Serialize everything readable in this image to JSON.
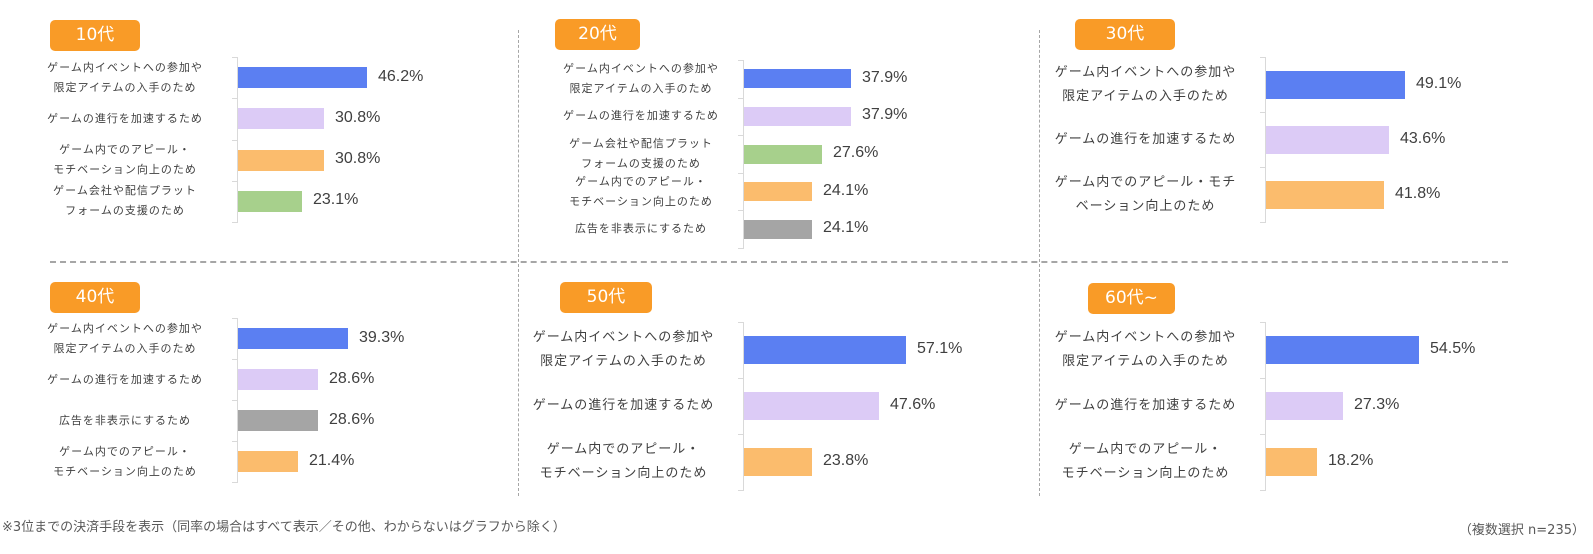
{
  "panels": [
    {
      "title": "10代",
      "items": [
        {
          "label": "ゲーム内イベントへの参加や\n限定アイテムの入手のため",
          "value": 46.2,
          "display": "46.2%",
          "color": "#5b7ff2"
        },
        {
          "label": "ゲームの進行を加速するため",
          "value": 30.8,
          "display": "30.8%",
          "color": "#dccbf6"
        },
        {
          "label": "ゲーム内でのアピール・\nモチベーション向上のため",
          "value": 30.8,
          "display": "30.8%",
          "color": "#fbbc6d"
        },
        {
          "label": "ゲーム会社や配信プラット\nフォームの支援のため",
          "value": 23.1,
          "display": "23.1%",
          "color": "#a7d08c"
        }
      ]
    },
    {
      "title": "20代",
      "items": [
        {
          "label": "ゲーム内イベントへの参加や\n限定アイテムの入手のため",
          "value": 37.9,
          "display": "37.9%",
          "color": "#5b7ff2"
        },
        {
          "label": "ゲームの進行を加速するため",
          "value": 37.9,
          "display": "37.9%",
          "color": "#dccbf6"
        },
        {
          "label": "ゲーム会社や配信プラット\nフォームの支援のため",
          "value": 27.6,
          "display": "27.6%",
          "color": "#a7d08c"
        },
        {
          "label": "ゲーム内でのアピール・\nモチベーション向上のため",
          "value": 24.1,
          "display": "24.1%",
          "color": "#fbbc6d"
        },
        {
          "label": "広告を非表示にするため",
          "value": 24.1,
          "display": "24.1%",
          "color": "#a5a5a5"
        }
      ]
    },
    {
      "title": "30代",
      "items": [
        {
          "label": "ゲーム内イベントへの参加や\n限定アイテムの入手のため",
          "value": 49.1,
          "display": "49.1%",
          "color": "#5b7ff2"
        },
        {
          "label": "ゲームの進行を加速するため",
          "value": 43.6,
          "display": "43.6%",
          "color": "#dccbf6"
        },
        {
          "label": "ゲーム内でのアピール・モチ\nベーション向上のため",
          "value": 41.8,
          "display": "41.8%",
          "color": "#fbbc6d"
        }
      ]
    },
    {
      "title": "40代",
      "items": [
        {
          "label": "ゲーム内イベントへの参加や\n限定アイテムの入手のため",
          "value": 39.3,
          "display": "39.3%",
          "color": "#5b7ff2"
        },
        {
          "label": "ゲームの進行を加速するため",
          "value": 28.6,
          "display": "28.6%",
          "color": "#dccbf6"
        },
        {
          "label": "広告を非表示にするため",
          "value": 28.6,
          "display": "28.6%",
          "color": "#a5a5a5"
        },
        {
          "label": "ゲーム内でのアピール・\nモチベーション向上のため",
          "value": 21.4,
          "display": "21.4%",
          "color": "#fbbc6d"
        }
      ]
    },
    {
      "title": "50代",
      "items": [
        {
          "label": "ゲーム内イベントへの参加や\n限定アイテムの入手のため",
          "value": 57.1,
          "display": "57.1%",
          "color": "#5b7ff2"
        },
        {
          "label": "ゲームの進行を加速するため",
          "value": 47.6,
          "display": "47.6%",
          "color": "#dccbf6"
        },
        {
          "label": "ゲーム内でのアピール・\nモチベーション向上のため",
          "value": 23.8,
          "display": "23.8%",
          "color": "#fbbc6d"
        }
      ]
    },
    {
      "title": "60代~",
      "items": [
        {
          "label": "ゲーム内イベントへの参加や\n限定アイテムの入手のため",
          "value": 54.5,
          "display": "54.5%",
          "color": "#5b7ff2"
        },
        {
          "label": "ゲームの進行を加速するため",
          "value": 27.3,
          "display": "27.3%",
          "color": "#dccbf6"
        },
        {
          "label": "ゲーム内でのアピール・\nモチベーション向上のため",
          "value": 18.2,
          "display": "18.2%",
          "color": "#fbbc6d"
        }
      ]
    }
  ],
  "footer": {
    "note": "※3位までの決済手段を表示（同率の場合はすべて表示／その他、わからないはグラフから除く）",
    "sample": "（複数選択 n=235）"
  },
  "colors": {
    "badge": "#f99b27",
    "divider": "#a6a6a6"
  },
  "chart_data": [
    {
      "type": "bar",
      "orientation": "horizontal",
      "title": "10代",
      "categories": [
        "ゲーム内イベントへの参加や限定アイテムの入手のため",
        "ゲームの進行を加速するため",
        "ゲーム内でのアピール・モチベーション向上のため",
        "ゲーム会社や配信プラットフォームの支援のため"
      ],
      "values": [
        46.2,
        30.8,
        30.8,
        23.1
      ],
      "unit": "%",
      "xlabel": "",
      "ylabel": ""
    },
    {
      "type": "bar",
      "orientation": "horizontal",
      "title": "20代",
      "categories": [
        "ゲーム内イベントへの参加や限定アイテムの入手のため",
        "ゲームの進行を加速するため",
        "ゲーム会社や配信プラットフォームの支援のため",
        "ゲーム内でのアピール・モチベーション向上のため",
        "広告を非表示にするため"
      ],
      "values": [
        37.9,
        37.9,
        27.6,
        24.1,
        24.1
      ],
      "unit": "%",
      "xlabel": "",
      "ylabel": ""
    },
    {
      "type": "bar",
      "orientation": "horizontal",
      "title": "30代",
      "categories": [
        "ゲーム内イベントへの参加や限定アイテムの入手のため",
        "ゲームの進行を加速するため",
        "ゲーム内でのアピール・モチベーション向上のため"
      ],
      "values": [
        49.1,
        43.6,
        41.8
      ],
      "unit": "%",
      "xlabel": "",
      "ylabel": ""
    },
    {
      "type": "bar",
      "orientation": "horizontal",
      "title": "40代",
      "categories": [
        "ゲーム内イベントへの参加や限定アイテムの入手のため",
        "ゲームの進行を加速するため",
        "広告を非表示にするため",
        "ゲーム内でのアピール・モチベーション向上のため"
      ],
      "values": [
        39.3,
        28.6,
        28.6,
        21.4
      ],
      "unit": "%",
      "xlabel": "",
      "ylabel": ""
    },
    {
      "type": "bar",
      "orientation": "horizontal",
      "title": "50代",
      "categories": [
        "ゲーム内イベントへの参加や限定アイテムの入手のため",
        "ゲームの進行を加速するため",
        "ゲーム内でのアピール・モチベーション向上のため"
      ],
      "values": [
        57.1,
        47.6,
        23.8
      ],
      "unit": "%",
      "xlabel": "",
      "ylabel": ""
    },
    {
      "type": "bar",
      "orientation": "horizontal",
      "title": "60代~",
      "categories": [
        "ゲーム内イベントへの参加や限定アイテムの入手のため",
        "ゲームの進行を加速するため",
        "ゲーム内でのアピール・モチベーション向上のため"
      ],
      "values": [
        54.5,
        27.3,
        18.2
      ],
      "unit": "%",
      "xlabel": "",
      "ylabel": ""
    }
  ]
}
